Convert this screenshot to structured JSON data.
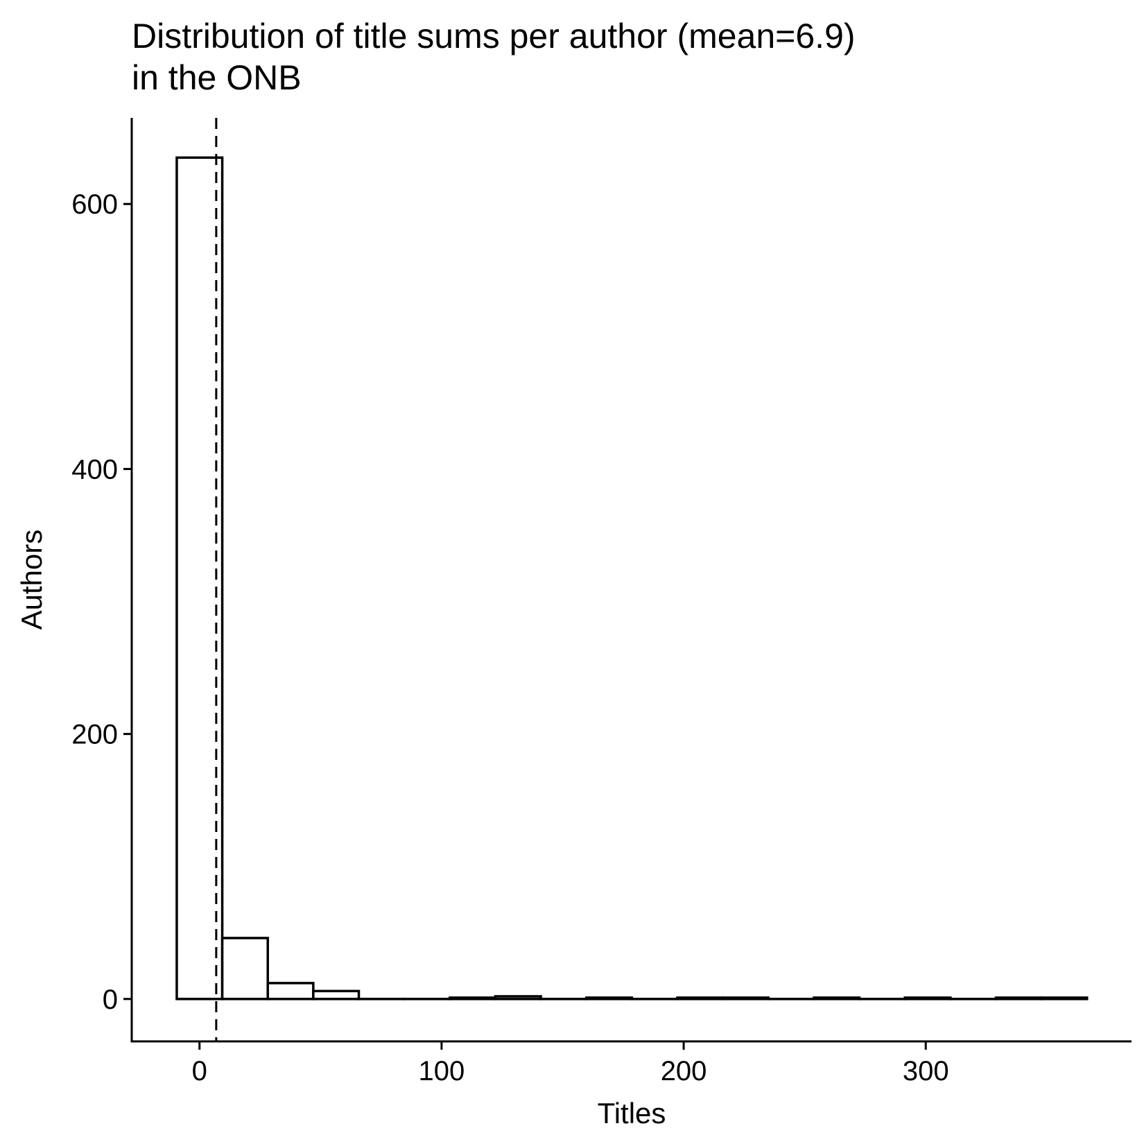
{
  "chart_data": {
    "type": "bar",
    "title_lines": [
      "Distribution of title sums per author (mean=6.9)",
      "in the ONB"
    ],
    "xlabel": "Titles",
    "ylabel": "Authors",
    "xlim": [
      -28,
      385
    ],
    "ylim": [
      -32,
      665
    ],
    "x_ticks": [
      {
        "value": 0,
        "label": "0"
      },
      {
        "value": 100,
        "label": "100"
      },
      {
        "value": 200,
        "label": "200"
      },
      {
        "value": 300,
        "label": "300"
      }
    ],
    "y_ticks": [
      {
        "value": 0,
        "label": "0"
      },
      {
        "value": 200,
        "label": "200"
      },
      {
        "value": 400,
        "label": "400"
      },
      {
        "value": 600,
        "label": "600"
      }
    ],
    "bin_width": 18.8,
    "bins": [
      {
        "x": 0,
        "count": 635
      },
      {
        "x": 18.8,
        "count": 46
      },
      {
        "x": 37.6,
        "count": 12
      },
      {
        "x": 56.4,
        "count": 6
      },
      {
        "x": 75.2,
        "count": 0
      },
      {
        "x": 94,
        "count": 0
      },
      {
        "x": 112.8,
        "count": 1
      },
      {
        "x": 131.6,
        "count": 2
      },
      {
        "x": 150.4,
        "count": 0
      },
      {
        "x": 169.2,
        "count": 1
      },
      {
        "x": 188,
        "count": 0
      },
      {
        "x": 206.8,
        "count": 1
      },
      {
        "x": 225.6,
        "count": 1
      },
      {
        "x": 244.4,
        "count": 0
      },
      {
        "x": 263.2,
        "count": 1
      },
      {
        "x": 282,
        "count": 0
      },
      {
        "x": 300.8,
        "count": 1
      },
      {
        "x": 319.6,
        "count": 0
      },
      {
        "x": 338.4,
        "count": 1
      },
      {
        "x": 357.2,
        "count": 1
      }
    ],
    "mean": 6.9,
    "mean_line_style": "dashed",
    "grid": false,
    "legend": "none",
    "colors": {
      "bar_fill": "#ffffff",
      "bar_stroke": "#000000",
      "axis": "#000000"
    }
  }
}
